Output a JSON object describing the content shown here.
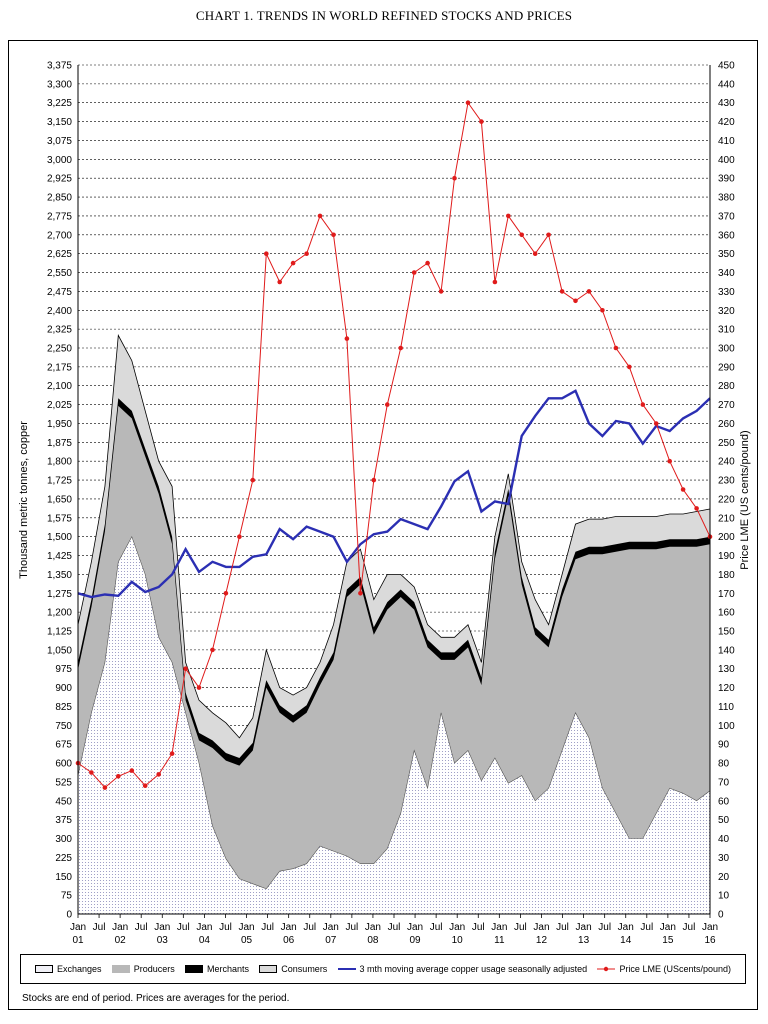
{
  "title": "CHART 1. TRENDS IN WORLD REFINED STOCKS AND PRICES",
  "footnote": "Stocks are end of period.  Prices are averages for the period.",
  "colors": {
    "exchanges": "#f0f0f6",
    "producers": "#b8b8b8",
    "merchants": "#000000",
    "consumers": "#dadada",
    "usage_line": "#2b2fb3",
    "price_line": "#e01b1b"
  },
  "legend": {
    "exchanges": "Exchanges",
    "producers": "Producers",
    "merchants": "Merchants",
    "consumers": "Consumers",
    "usage": "3 mth moving average copper usage seasonally adjusted",
    "price": "Price LME (UScents/pound)"
  },
  "chart_data": {
    "type": "area",
    "title": "CHART 1. TRENDS IN WORLD REFINED STOCKS AND PRICES",
    "ylabel": "Thousand metric tonnes, copper",
    "y2label": "Price LME (US cents/pound)",
    "ylim": [
      0,
      3375
    ],
    "y2lim": [
      0,
      450
    ],
    "yticks": [
      "0",
      "75",
      "150",
      "225",
      "300",
      "375",
      "450",
      "525",
      "600",
      "675",
      "750",
      "825",
      "900",
      "975",
      "1,050",
      "1,125",
      "1,200",
      "1,275",
      "1,350",
      "1,425",
      "1,500",
      "1,575",
      "1,650",
      "1,725",
      "1,800",
      "1,875",
      "1,950",
      "2,025",
      "2,100",
      "2,175",
      "2,250",
      "2,325",
      "2,400",
      "2,475",
      "2,550",
      "2,625",
      "2,700",
      "2,775",
      "2,850",
      "2,925",
      "3,000",
      "3,075",
      "3,150",
      "3,225",
      "3,300",
      "3,375"
    ],
    "y2ticks": [
      "0",
      "10",
      "20",
      "30",
      "40",
      "50",
      "60",
      "70",
      "80",
      "90",
      "100",
      "110",
      "120",
      "130",
      "140",
      "150",
      "160",
      "170",
      "180",
      "190",
      "200",
      "210",
      "220",
      "230",
      "240",
      "250",
      "260",
      "270",
      "280",
      "290",
      "300",
      "310",
      "320",
      "330",
      "340",
      "350",
      "360",
      "370",
      "380",
      "390",
      "400",
      "410",
      "420",
      "430",
      "440",
      "450"
    ],
    "xticks": [
      {
        "m": "Jan",
        "y": "01"
      },
      {
        "m": "Jul",
        "y": ""
      },
      {
        "m": "Jan",
        "y": "02"
      },
      {
        "m": "Jul",
        "y": ""
      },
      {
        "m": "Jan",
        "y": "03"
      },
      {
        "m": "Jul",
        "y": ""
      },
      {
        "m": "Jan",
        "y": "04"
      },
      {
        "m": "Jul",
        "y": ""
      },
      {
        "m": "Jan",
        "y": "05"
      },
      {
        "m": "Jul",
        "y": ""
      },
      {
        "m": "Jan",
        "y": "06"
      },
      {
        "m": "Jul",
        "y": ""
      },
      {
        "m": "Jan",
        "y": "07"
      },
      {
        "m": "Jul",
        "y": ""
      },
      {
        "m": "Jan",
        "y": "08"
      },
      {
        "m": "Jul",
        "y": ""
      },
      {
        "m": "Jan",
        "y": "09"
      },
      {
        "m": "Jul",
        "y": ""
      },
      {
        "m": "Jan",
        "y": "10"
      },
      {
        "m": "Jul",
        "y": ""
      },
      {
        "m": "Jan",
        "y": "11"
      },
      {
        "m": "Jul",
        "y": ""
      },
      {
        "m": "Jan",
        "y": "12"
      },
      {
        "m": "Jul",
        "y": ""
      },
      {
        "m": "Jan",
        "y": "13"
      },
      {
        "m": "Jul",
        "y": ""
      },
      {
        "m": "Jan",
        "y": "14"
      },
      {
        "m": "Jul",
        "y": ""
      },
      {
        "m": "Jan",
        "y": "15"
      },
      {
        "m": "Jul",
        "y": ""
      },
      {
        "m": "Jan",
        "y": "16"
      }
    ],
    "months_per_point": 3,
    "series": [
      {
        "name": "Exchanges",
        "axis": "left",
        "stack": "cumulative",
        "values": [
          550,
          800,
          1000,
          1400,
          1500,
          1350,
          1100,
          1000,
          800,
          600,
          350,
          220,
          140,
          120,
          100,
          170,
          180,
          200,
          270,
          250,
          230,
          200,
          200,
          260,
          400,
          650,
          500,
          800,
          600,
          650,
          530,
          620,
          520,
          550,
          450,
          500,
          650,
          800,
          700,
          500,
          400,
          300,
          300,
          400,
          500,
          480,
          450,
          490
        ]
      },
      {
        "name": "Producers",
        "axis": "left",
        "stack": "cumulative",
        "values": [
          950,
          1200,
          1500,
          2000,
          1950,
          1800,
          1650,
          1450,
          850,
          700,
          660,
          620,
          600,
          650,
          900,
          800,
          750,
          800,
          900,
          1000,
          1250,
          1300,
          1100,
          1200,
          1250,
          1200,
          1050,
          1000,
          1000,
          1050,
          900,
          1400,
          1650,
          1300,
          1100,
          1050,
          1250,
          1400,
          1420,
          1420,
          1430,
          1440,
          1440,
          1440,
          1450,
          1450,
          1450,
          1460
        ]
      },
      {
        "name": "Merchants",
        "axis": "left",
        "stack": "cumulative",
        "values": [
          1000,
          1250,
          1550,
          2050,
          2000,
          1850,
          1700,
          1500,
          880,
          720,
          690,
          640,
          620,
          680,
          930,
          830,
          790,
          830,
          940,
          1040,
          1290,
          1340,
          1140,
          1240,
          1290,
          1240,
          1090,
          1040,
          1040,
          1090,
          940,
          1440,
          1690,
          1340,
          1140,
          1090,
          1290,
          1440,
          1460,
          1460,
          1470,
          1480,
          1480,
          1480,
          1490,
          1490,
          1490,
          1500
        ]
      },
      {
        "name": "Consumers",
        "axis": "left",
        "stack": "cumulative",
        "values": [
          1150,
          1400,
          1700,
          2300,
          2200,
          2000,
          1800,
          1700,
          1000,
          850,
          800,
          760,
          700,
          780,
          1050,
          900,
          870,
          900,
          1000,
          1150,
          1400,
          1450,
          1250,
          1350,
          1350,
          1300,
          1150,
          1100,
          1100,
          1150,
          1000,
          1500,
          1750,
          1400,
          1250,
          1150,
          1350,
          1550,
          1570,
          1570,
          1580,
          1580,
          1580,
          1580,
          1590,
          1590,
          1600,
          1610
        ]
      },
      {
        "name": "3 mth moving average copper usage seasonally adjusted",
        "axis": "left",
        "values": [
          1275,
          1260,
          1270,
          1265,
          1320,
          1280,
          1300,
          1350,
          1450,
          1360,
          1400,
          1380,
          1380,
          1420,
          1430,
          1530,
          1490,
          1540,
          1520,
          1500,
          1400,
          1470,
          1510,
          1520,
          1570,
          1550,
          1530,
          1620,
          1720,
          1760,
          1600,
          1640,
          1630,
          1900,
          1980,
          2050,
          2050,
          2080,
          1950,
          1900,
          1960,
          1950,
          1870,
          1940,
          1920,
          1970,
          2000,
          2050
        ]
      },
      {
        "name": "Price LME (UScents/pound)",
        "axis": "right",
        "values": [
          80,
          75,
          67,
          73,
          76,
          68,
          74,
          85,
          130,
          120,
          140,
          170,
          200,
          230,
          350,
          335,
          345,
          350,
          370,
          360,
          305,
          170,
          230,
          270,
          300,
          340,
          345,
          330,
          390,
          430,
          420,
          335,
          370,
          360,
          350,
          360,
          330,
          325,
          330,
          320,
          300,
          290,
          270,
          260,
          240,
          225,
          215,
          200
        ]
      }
    ]
  }
}
